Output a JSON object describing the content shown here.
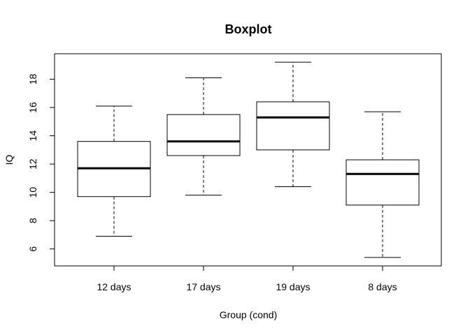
{
  "chart_data": {
    "type": "boxplot",
    "title": "Boxplot",
    "xlabel": "Group (cond)",
    "ylabel": "IQ",
    "ylim": [
      4.8,
      19.8
    ],
    "yticks": [
      6,
      8,
      10,
      12,
      14,
      16,
      18
    ],
    "ytick_labels": [
      "6",
      "8",
      "10",
      "12",
      "14",
      "16",
      "18"
    ],
    "grid": false,
    "legend": "none",
    "categories": [
      "12 days",
      "17 days",
      "19 days",
      "8 days"
    ],
    "boxes": [
      {
        "category": "12 days",
        "whisker_low": 6.9,
        "q1": 9.7,
        "median": 11.7,
        "q3": 13.6,
        "whisker_high": 16.1
      },
      {
        "category": "17 days",
        "whisker_low": 9.8,
        "q1": 12.6,
        "median": 13.6,
        "q3": 15.5,
        "whisker_high": 18.1
      },
      {
        "category": "19 days",
        "whisker_low": 10.4,
        "q1": 13.0,
        "median": 15.3,
        "q3": 16.4,
        "whisker_high": 19.2
      },
      {
        "category": "8 days",
        "whisker_low": 5.4,
        "q1": 9.1,
        "median": 11.3,
        "q3": 12.3,
        "whisker_high": 15.7
      }
    ]
  }
}
